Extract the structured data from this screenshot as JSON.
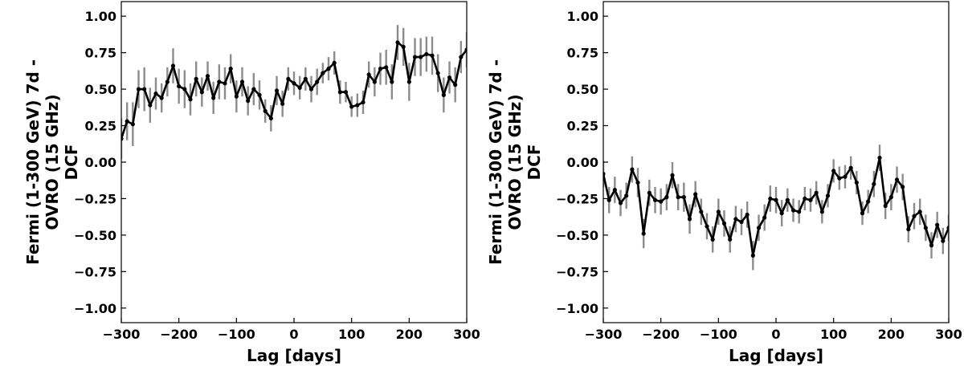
{
  "chart_data": [
    {
      "type": "line",
      "xlabel": "Lag [days]",
      "ylabel": [
        "Fermi (1-300 GeV) 7d -",
        "OVRO (15 GHz)",
        "DCF"
      ],
      "xlim": [
        -300,
        300
      ],
      "ylim": [
        -1.1,
        1.1
      ],
      "xticks": [
        -300,
        -200,
        -100,
        0,
        100,
        200,
        300
      ],
      "xtick_labels": [
        "−300",
        "−200",
        "−100",
        "0",
        "100",
        "200",
        "300"
      ],
      "yticks": [
        1.0,
        0.75,
        0.5,
        0.25,
        0.0,
        -0.25,
        -0.5,
        -0.75,
        -1.0
      ],
      "ytick_labels": [
        "1.00",
        "0.75",
        "0.50",
        "0.25",
        "0.00",
        "−0.25",
        "−0.50",
        "−0.75",
        "−1.00"
      ],
      "grid": false,
      "line_color": "#000000",
      "errorbar_color": "#8c8c8c",
      "series": [
        {
          "x": [
            -300,
            -290,
            -280,
            -270,
            -260,
            -250,
            -240,
            -230,
            -220,
            -210,
            -200,
            -190,
            -180,
            -170,
            -160,
            -150,
            -140,
            -130,
            -120,
            -110,
            -100,
            -90,
            -80,
            -70,
            -60,
            -50,
            -40,
            -30,
            -20,
            -10,
            0,
            10,
            20,
            30,
            40,
            50,
            60,
            70,
            80,
            90,
            100,
            110,
            120,
            130,
            140,
            150,
            160,
            170,
            180,
            190,
            200,
            210,
            220,
            230,
            240,
            250,
            260,
            270,
            280,
            290,
            300
          ],
          "y": [
            0.16,
            0.28,
            0.26,
            0.5,
            0.5,
            0.39,
            0.47,
            0.44,
            0.55,
            0.66,
            0.52,
            0.5,
            0.43,
            0.57,
            0.48,
            0.59,
            0.44,
            0.55,
            0.54,
            0.64,
            0.45,
            0.55,
            0.42,
            0.5,
            0.46,
            0.35,
            0.3,
            0.49,
            0.4,
            0.57,
            0.54,
            0.51,
            0.57,
            0.5,
            0.55,
            0.61,
            0.64,
            0.68,
            0.48,
            0.48,
            0.38,
            0.39,
            0.41,
            0.6,
            0.55,
            0.64,
            0.65,
            0.55,
            0.82,
            0.79,
            0.55,
            0.72,
            0.72,
            0.74,
            0.73,
            0.61,
            0.46,
            0.58,
            0.53,
            0.72,
            0.77
          ],
          "err": [
            0.14,
            0.13,
            0.15,
            0.13,
            0.15,
            0.12,
            0.11,
            0.1,
            0.1,
            0.12,
            0.12,
            0.13,
            0.11,
            0.12,
            0.1,
            0.1,
            0.11,
            0.12,
            0.11,
            0.1,
            0.11,
            0.1,
            0.1,
            0.11,
            0.1,
            0.08,
            0.09,
            0.1,
            0.09,
            0.08,
            0.08,
            0.08,
            0.08,
            0.09,
            0.09,
            0.07,
            0.08,
            0.08,
            0.08,
            0.07,
            0.07,
            0.08,
            0.08,
            0.09,
            0.1,
            0.11,
            0.12,
            0.12,
            0.12,
            0.13,
            0.13,
            0.13,
            0.13,
            0.12,
            0.13,
            0.13,
            0.12,
            0.11,
            0.12,
            0.11,
            0.12
          ]
        }
      ]
    },
    {
      "type": "line",
      "xlabel": "Lag [days]",
      "ylabel": [
        "Fermi (1-300 GeV) 7d -",
        "OVRO (15 GHz)",
        "DCF"
      ],
      "xlim": [
        -300,
        300
      ],
      "ylim": [
        -1.1,
        1.1
      ],
      "xticks": [
        -300,
        -200,
        -100,
        0,
        100,
        200,
        300
      ],
      "xtick_labels": [
        "−300",
        "−200",
        "−100",
        "0",
        "100",
        "200",
        "300"
      ],
      "yticks": [
        1.0,
        0.75,
        0.5,
        0.25,
        0.0,
        -0.25,
        -0.5,
        -0.75,
        -1.0
      ],
      "ytick_labels": [
        "1.00",
        "0.75",
        "0.50",
        "0.25",
        "0.00",
        "−0.25",
        "−0.50",
        "−0.75",
        "−1.00"
      ],
      "grid": false,
      "line_color": "#000000",
      "errorbar_color": "#8c8c8c",
      "series": [
        {
          "x": [
            -300,
            -290,
            -280,
            -270,
            -260,
            -250,
            -240,
            -230,
            -220,
            -210,
            -200,
            -190,
            -180,
            -170,
            -160,
            -150,
            -140,
            -130,
            -120,
            -110,
            -100,
            -90,
            -80,
            -70,
            -60,
            -50,
            -40,
            -30,
            -20,
            -10,
            0,
            10,
            20,
            30,
            40,
            50,
            60,
            70,
            80,
            90,
            100,
            110,
            120,
            130,
            140,
            150,
            160,
            170,
            180,
            190,
            200,
            210,
            220,
            230,
            240,
            250,
            260,
            270,
            280,
            290,
            300
          ],
          "y": [
            -0.08,
            -0.26,
            -0.19,
            -0.28,
            -0.23,
            -0.05,
            -0.14,
            -0.49,
            -0.21,
            -0.26,
            -0.27,
            -0.24,
            -0.09,
            -0.24,
            -0.24,
            -0.39,
            -0.22,
            -0.34,
            -0.44,
            -0.53,
            -0.34,
            -0.42,
            -0.53,
            -0.39,
            -0.41,
            -0.36,
            -0.64,
            -0.45,
            -0.38,
            -0.25,
            -0.26,
            -0.35,
            -0.26,
            -0.33,
            -0.34,
            -0.25,
            -0.26,
            -0.21,
            -0.34,
            -0.23,
            -0.06,
            -0.11,
            -0.1,
            -0.04,
            -0.14,
            -0.35,
            -0.27,
            -0.15,
            0.03,
            -0.3,
            -0.24,
            -0.12,
            -0.17,
            -0.46,
            -0.37,
            -0.34,
            -0.45,
            -0.57,
            -0.43,
            -0.54,
            -0.45
          ],
          "err": [
            0.09,
            0.09,
            0.09,
            0.09,
            0.09,
            0.09,
            0.1,
            0.1,
            0.09,
            0.09,
            0.09,
            0.09,
            0.09,
            0.09,
            0.1,
            0.1,
            0.09,
            0.09,
            0.09,
            0.09,
            0.09,
            0.09,
            0.09,
            0.09,
            0.09,
            0.09,
            0.1,
            0.09,
            0.09,
            0.09,
            0.09,
            0.09,
            0.08,
            0.08,
            0.08,
            0.08,
            0.08,
            0.08,
            0.08,
            0.08,
            0.08,
            0.08,
            0.08,
            0.08,
            0.08,
            0.08,
            0.08,
            0.09,
            0.09,
            0.09,
            0.09,
            0.09,
            0.09,
            0.09,
            0.09,
            0.09,
            0.09,
            0.09,
            0.09,
            0.09,
            0.09
          ]
        }
      ]
    }
  ]
}
